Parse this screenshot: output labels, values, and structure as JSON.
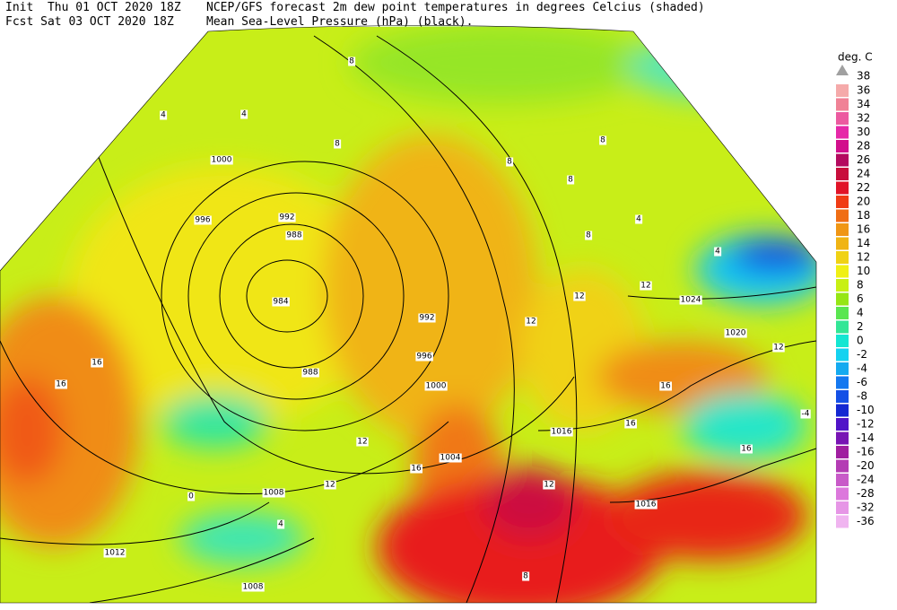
{
  "header": {
    "line1": "Init  Thu 01 OCT 2020 18Z",
    "line2": "Fcst Sat 03 OCT 2020 18Z",
    "title1": "NCEP/GFS forecast 2m dew point temperatures in degrees Celcius (shaded)",
    "title2": "Mean Sea-Level Pressure (hPa) (black)."
  },
  "legend": {
    "unit": "deg. C",
    "top": "38",
    "levels": [
      {
        "label": "36",
        "color": "#f5aaaa"
      },
      {
        "label": "34",
        "color": "#f08296"
      },
      {
        "label": "32",
        "color": "#ec5aa0"
      },
      {
        "label": "30",
        "color": "#e628a8"
      },
      {
        "label": "28",
        "color": "#d20f8c"
      },
      {
        "label": "26",
        "color": "#b40a5f"
      },
      {
        "label": "24",
        "color": "#c80f3c"
      },
      {
        "label": "22",
        "color": "#e11428"
      },
      {
        "label": "20",
        "color": "#f03c14"
      },
      {
        "label": "18",
        "color": "#f06e14"
      },
      {
        "label": "16",
        "color": "#f09614"
      },
      {
        "label": "14",
        "color": "#f0b414"
      },
      {
        "label": "12",
        "color": "#f0d214"
      },
      {
        "label": "10",
        "color": "#f0f014"
      },
      {
        "label": "8",
        "color": "#c8f014"
      },
      {
        "label": "6",
        "color": "#96e614"
      },
      {
        "label": "4",
        "color": "#5ae650"
      },
      {
        "label": "2",
        "color": "#32e696"
      },
      {
        "label": "0",
        "color": "#14e6d2"
      },
      {
        "label": "-2",
        "color": "#14d2f0"
      },
      {
        "label": "-4",
        "color": "#14aaf0"
      },
      {
        "label": "-6",
        "color": "#1478f0"
      },
      {
        "label": "-8",
        "color": "#1450e6"
      },
      {
        "label": "-10",
        "color": "#1428d2"
      },
      {
        "label": "-12",
        "color": "#5014c8"
      },
      {
        "label": "-14",
        "color": "#7814b4"
      },
      {
        "label": "-16",
        "color": "#a01ea0"
      },
      {
        "label": "-20",
        "color": "#b43cb4"
      },
      {
        "label": "-24",
        "color": "#c85ac8"
      },
      {
        "label": "-28",
        "color": "#dc78dc"
      },
      {
        "label": "-32",
        "color": "#e696e6"
      },
      {
        "label": "-36",
        "color": "#f0b4f0"
      }
    ]
  },
  "map": {
    "isobar_labels": [
      "1000",
      "996",
      "992",
      "988",
      "984",
      "988",
      "992",
      "996",
      "1000",
      "1004",
      "1008",
      "1012",
      "1008",
      "1016",
      "1016",
      "1020",
      "1024"
    ],
    "dewpoint_labels": [
      "8",
      "4",
      "4",
      "8",
      "8",
      "8",
      "8",
      "4",
      "4",
      "8",
      "12",
      "12",
      "12",
      "16",
      "16",
      "16",
      "12",
      "16",
      "12",
      "4",
      "0",
      "16",
      "12",
      "-4",
      "16",
      "8",
      "12"
    ]
  }
}
